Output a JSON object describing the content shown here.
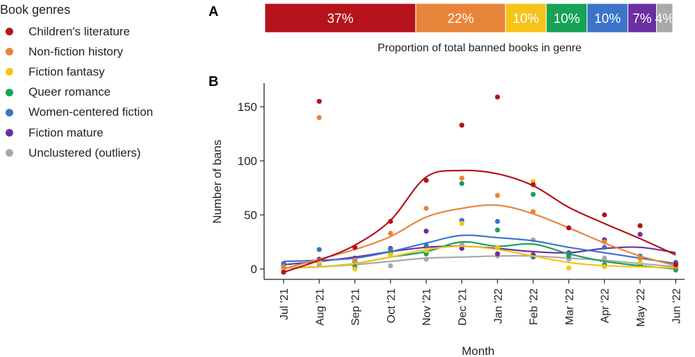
{
  "legend": {
    "title": "Book genres",
    "items": [
      {
        "label": "Children's literature",
        "color": "#b5121b"
      },
      {
        "label": "Non-fiction history",
        "color": "#e8843a"
      },
      {
        "label": "Fiction fantasy",
        "color": "#f5c31a"
      },
      {
        "label": "Queer romance",
        "color": "#17a356"
      },
      {
        "label": "Women-centered fiction",
        "color": "#3b74c9"
      },
      {
        "label": "Fiction mature",
        "color": "#6b2fa3"
      },
      {
        "label": "Unclustered (outliers)",
        "color": "#a9a9a9"
      }
    ]
  },
  "chart_data": [
    {
      "panel": "A",
      "type": "bar",
      "orientation": "horizontal-stacked",
      "title": "Proportion of total banned books in genre",
      "categories": [
        "Children's literature",
        "Non-fiction history",
        "Fiction fantasy",
        "Queer romance",
        "Women-centered fiction",
        "Fiction mature",
        "Unclustered (outliers)"
      ],
      "values": [
        37,
        22,
        10,
        10,
        10,
        7,
        4
      ],
      "labels": [
        "37%",
        "22%",
        "10%",
        "10%",
        "10%",
        "7%",
        "4%"
      ],
      "unit": "%"
    },
    {
      "panel": "B",
      "type": "line",
      "xlabel": "Month",
      "ylabel": "Number of bans",
      "ylim": [
        -10,
        165
      ],
      "yticks": [
        0,
        50,
        100,
        150
      ],
      "categories": [
        "Jul '21",
        "Aug '21",
        "Sep '21",
        "Oct '21",
        "Nov '21",
        "Dec '21",
        "Jan '22",
        "Feb '22",
        "Mar '22",
        "Apr '22",
        "May '22",
        "Jun '22"
      ],
      "series": [
        {
          "name": "Children's literature",
          "points": [
            -3,
            155,
            20,
            44,
            82,
            133,
            159,
            78,
            38,
            50,
            40,
            4
          ],
          "trend": [
            -3,
            8,
            22,
            45,
            85,
            91,
            88,
            77,
            57,
            42,
            28,
            13
          ]
        },
        {
          "name": "Non-fiction history",
          "points": [
            2,
            140,
            8,
            33,
            56,
            84,
            68,
            53,
            38,
            25,
            10,
            2
          ],
          "trend": [
            0,
            9,
            18,
            30,
            48,
            56,
            59,
            51,
            38,
            24,
            12,
            3
          ]
        },
        {
          "name": "Fiction fantasy",
          "points": [
            0,
            7,
            0,
            13,
            17,
            42,
            20,
            81,
            1,
            2,
            6,
            3
          ],
          "trend": [
            1,
            2,
            5,
            11,
            18,
            21,
            18,
            12,
            6,
            3,
            2,
            1
          ]
        },
        {
          "name": "Queer romance",
          "points": [
            0,
            7,
            2,
            15,
            14,
            79,
            36,
            69,
            12,
            4,
            4,
            -1
          ],
          "trend": [
            1,
            2,
            5,
            11,
            16,
            25,
            21,
            23,
            14,
            7,
            3,
            0
          ]
        },
        {
          "name": "Women-centered fiction",
          "points": [
            5,
            18,
            7,
            18,
            22,
            45,
            44,
            11,
            14,
            20,
            12,
            5
          ],
          "trend": [
            7,
            8,
            10,
            16,
            24,
            31,
            29,
            26,
            20,
            15,
            10,
            5
          ]
        },
        {
          "name": "Fiction mature",
          "points": [
            3,
            9,
            10,
            19,
            35,
            19,
            14,
            13,
            15,
            27,
            32,
            6
          ],
          "trend": [
            4,
            7,
            11,
            16,
            20,
            21,
            19,
            16,
            15,
            19,
            20,
            15
          ]
        },
        {
          "name": "Unclustered (outliers)",
          "points": [
            1,
            4,
            4,
            3,
            9,
            23,
            12,
            27,
            9,
            10,
            10,
            1
          ],
          "trend": [
            1,
            2,
            4,
            7,
            10,
            11,
            12,
            12,
            10,
            8,
            5,
            2
          ]
        }
      ]
    }
  ]
}
